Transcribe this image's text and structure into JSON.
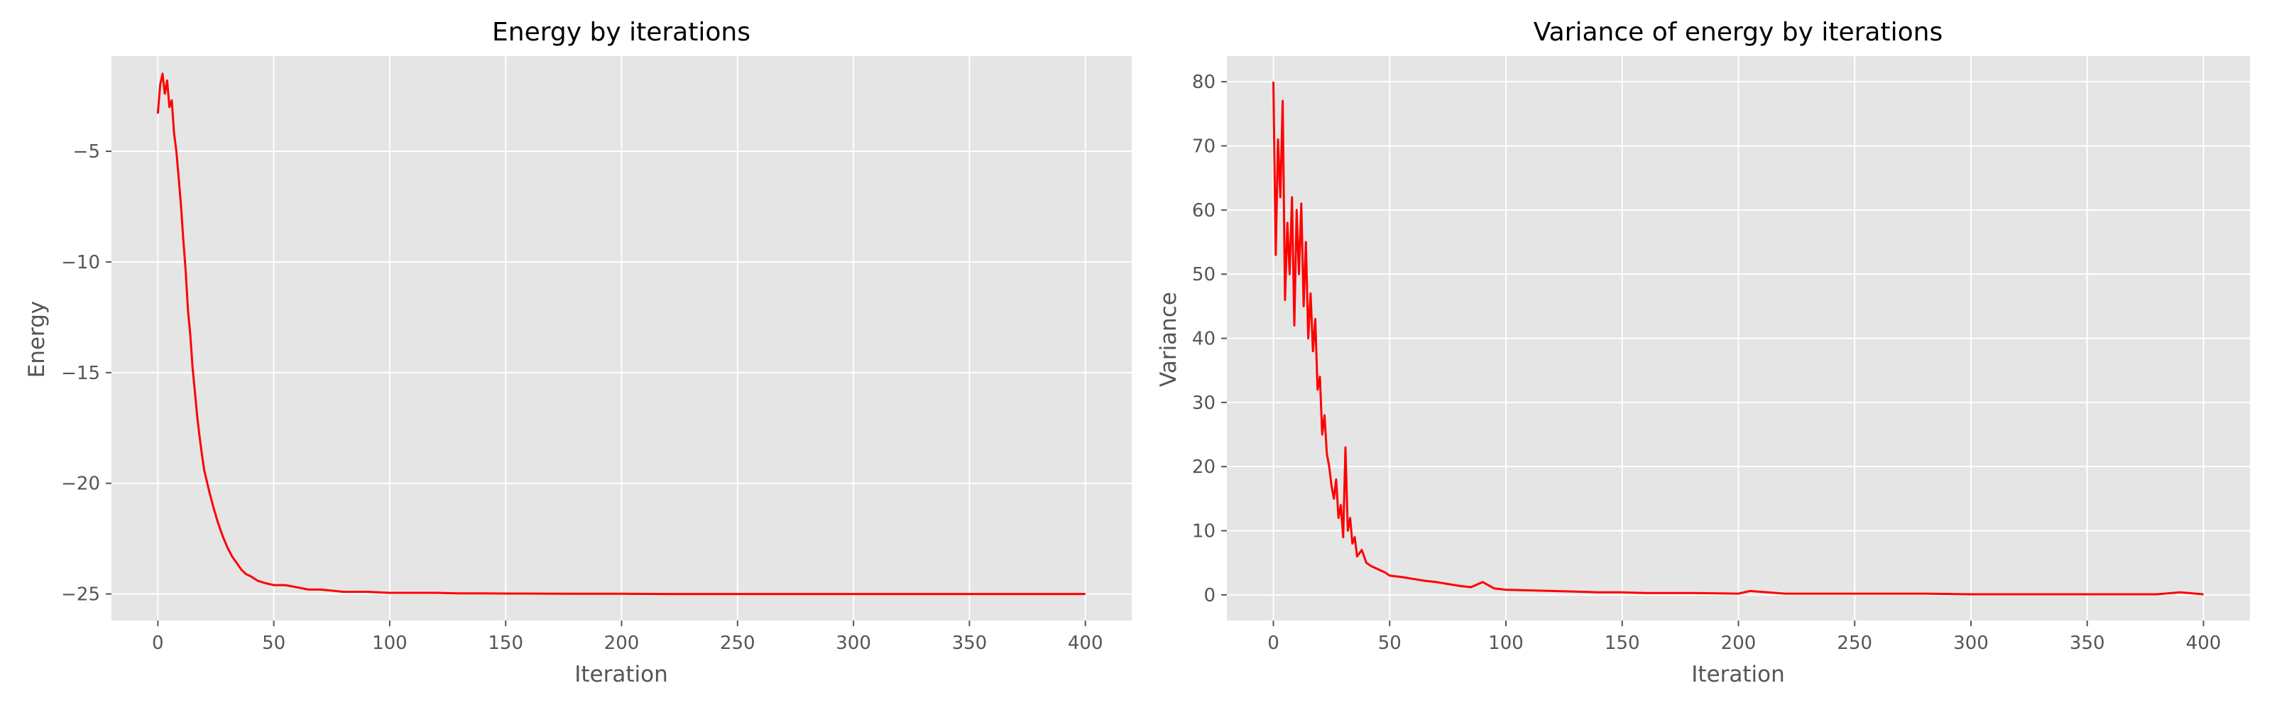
{
  "colors": {
    "figure_background": "#ffffff",
    "axes_background": "#e5e5e5",
    "grid": "#ffffff",
    "line": "#ff0000",
    "tick_text": "#555555",
    "label_text": "#555555",
    "title_text": "#000000"
  },
  "chart_data": [
    {
      "type": "line",
      "title": "Energy by iterations",
      "xlabel": "Iteration",
      "ylabel": "Energy",
      "xlim": [
        -20,
        420
      ],
      "ylim": [
        -26.2,
        -0.7
      ],
      "x_ticks": [
        0,
        50,
        100,
        150,
        200,
        250,
        300,
        350,
        400
      ],
      "x_tick_labels": [
        "0",
        "50",
        "100",
        "150",
        "200",
        "250",
        "300",
        "350",
        "400"
      ],
      "y_ticks": [
        -5,
        -10,
        -15,
        -20,
        -25
      ],
      "y_tick_labels": [
        "−5",
        "−10",
        "−15",
        "−20",
        "−25"
      ],
      "grid": true,
      "series": [
        {
          "color": "#ff0000",
          "x": [
            0,
            1,
            2,
            3,
            4,
            5,
            6,
            7,
            8,
            9,
            10,
            11,
            12,
            13,
            14,
            15,
            16,
            17,
            18,
            19,
            20,
            22,
            24,
            26,
            28,
            30,
            32,
            34,
            36,
            38,
            40,
            43,
            46,
            50,
            55,
            60,
            65,
            70,
            75,
            80,
            90,
            100,
            110,
            120,
            130,
            140,
            150,
            160,
            180,
            200,
            220,
            240,
            260,
            280,
            300,
            320,
            340,
            360,
            380,
            400
          ],
          "y": [
            -3.3,
            -2.0,
            -1.5,
            -2.4,
            -1.8,
            -3.0,
            -2.7,
            -4.2,
            -5.0,
            -6.2,
            -7.5,
            -9.0,
            -10.4,
            -12.2,
            -13.3,
            -14.8,
            -15.9,
            -17.0,
            -17.9,
            -18.7,
            -19.4,
            -20.3,
            -21.1,
            -21.8,
            -22.4,
            -22.9,
            -23.3,
            -23.6,
            -23.9,
            -24.1,
            -24.2,
            -24.4,
            -24.5,
            -24.6,
            -24.6,
            -24.7,
            -24.8,
            -24.8,
            -24.85,
            -24.9,
            -24.9,
            -24.95,
            -24.95,
            -24.95,
            -24.97,
            -24.97,
            -24.98,
            -24.98,
            -24.99,
            -24.99,
            -25.0,
            -25.0,
            -25.0,
            -25.0,
            -25.0,
            -25.0,
            -25.0,
            -25.0,
            -25.0,
            -25.0
          ]
        }
      ]
    },
    {
      "type": "line",
      "title": "Variance of energy by iterations",
      "xlabel": "Iteration",
      "ylabel": "Variance",
      "xlim": [
        -20,
        420
      ],
      "ylim": [
        -4,
        84
      ],
      "x_ticks": [
        0,
        50,
        100,
        150,
        200,
        250,
        300,
        350,
        400
      ],
      "x_tick_labels": [
        "0",
        "50",
        "100",
        "150",
        "200",
        "250",
        "300",
        "350",
        "400"
      ],
      "y_ticks": [
        0,
        10,
        20,
        30,
        40,
        50,
        60,
        70,
        80
      ],
      "y_tick_labels": [
        "0",
        "10",
        "20",
        "30",
        "40",
        "50",
        "60",
        "70",
        "80"
      ],
      "grid": true,
      "series": [
        {
          "color": "#ff0000",
          "x": [
            0,
            1,
            2,
            3,
            4,
            5,
            6,
            7,
            8,
            9,
            10,
            11,
            12,
            13,
            14,
            15,
            16,
            17,
            18,
            19,
            20,
            21,
            22,
            23,
            24,
            25,
            26,
            27,
            28,
            29,
            30,
            31,
            32,
            33,
            34,
            35,
            36,
            38,
            40,
            42,
            45,
            48,
            50,
            55,
            60,
            65,
            70,
            75,
            80,
            85,
            90,
            95,
            100,
            110,
            120,
            130,
            140,
            150,
            160,
            180,
            200,
            205,
            220,
            240,
            260,
            280,
            300,
            320,
            340,
            360,
            380,
            390,
            400
          ],
          "y": [
            80,
            53,
            71,
            62,
            77,
            46,
            58,
            50,
            62,
            42,
            60,
            50,
            61,
            45,
            55,
            40,
            47,
            38,
            43,
            32,
            34,
            25,
            28,
            22,
            20,
            17,
            15,
            18,
            12,
            14,
            9,
            23,
            10,
            12,
            8,
            9,
            6,
            7,
            5,
            4.5,
            4,
            3.5,
            3,
            2.8,
            2.5,
            2.2,
            2,
            1.7,
            1.4,
            1.2,
            2,
            1,
            0.8,
            0.7,
            0.6,
            0.5,
            0.4,
            0.4,
            0.3,
            0.3,
            0.2,
            0.6,
            0.2,
            0.2,
            0.2,
            0.2,
            0.1,
            0.1,
            0.1,
            0.1,
            0.1,
            0.4,
            0.1
          ]
        }
      ]
    }
  ]
}
